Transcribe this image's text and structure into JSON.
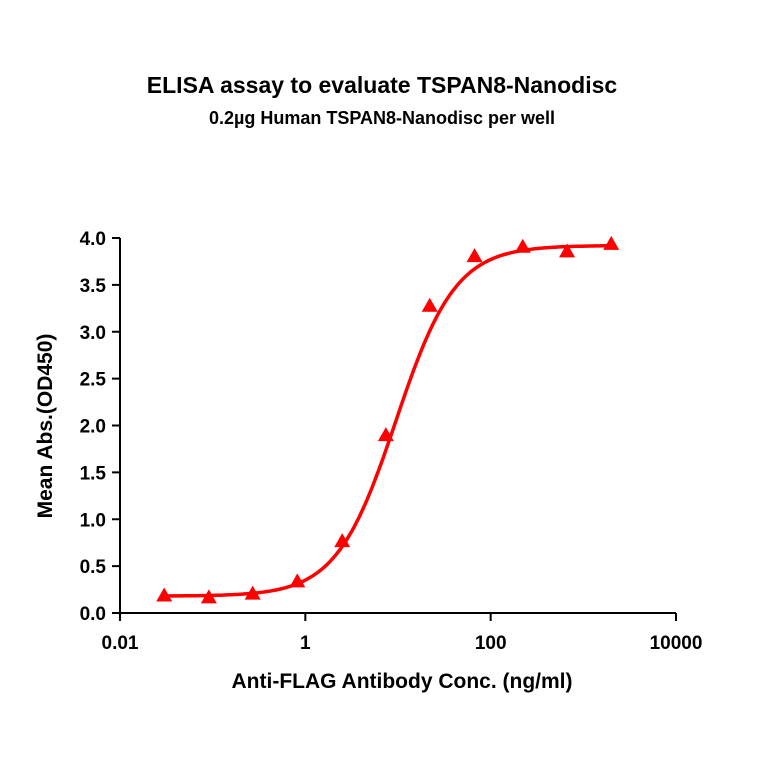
{
  "chart_data": {
    "type": "line",
    "title": "ELISA assay to evaluate TSPAN8-Nanodisc",
    "subtitle": "0.2µg Human TSPAN8-Nanodisc per well",
    "xlabel": "Anti-FLAG Antibody Conc. (ng/ml)",
    "ylabel": "Mean Abs.(OD450)",
    "xscale": "log",
    "xlim": [
      0.01,
      10000
    ],
    "ylim": [
      0,
      4.0
    ],
    "x_ticks": [
      "0.01",
      "1",
      "100",
      "10000"
    ],
    "y_ticks": [
      "0.0",
      "0.5",
      "1.0",
      "1.5",
      "2.0",
      "2.5",
      "3.0",
      "3.5",
      "4.0"
    ],
    "grid": false,
    "legend": null,
    "series": [
      {
        "name": "TSPAN8-Nanodisc",
        "color": "#ff0000",
        "marker": "triangle",
        "fit": "4PL sigmoidal",
        "x": [
          0.03,
          0.091,
          0.27,
          0.82,
          2.5,
          7.4,
          22,
          67,
          222,
          667,
          2000
        ],
        "y": [
          0.18,
          0.16,
          0.2,
          0.33,
          0.76,
          1.89,
          3.27,
          3.8,
          3.9,
          3.85,
          3.93
        ]
      }
    ]
  }
}
